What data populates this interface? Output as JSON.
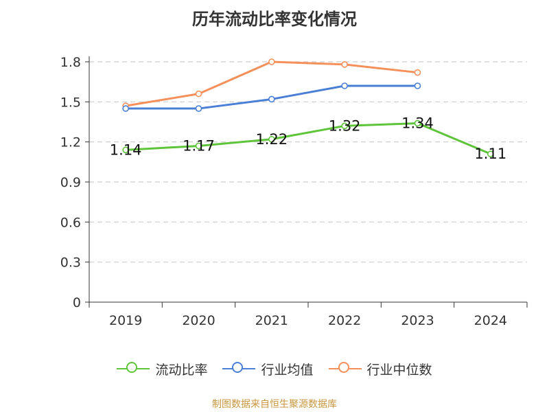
{
  "title": "历年流动比率变化情况",
  "source": "制图数据来自恒生聚源数据库",
  "colors": {
    "流动比率": "#5ec43a",
    "行业均值": "#4a7fd6",
    "行业中位数": "#f5905a",
    "axis": "#333333",
    "grid": "#cccccc"
  },
  "chart_data": {
    "type": "line",
    "title": "历年流动比率变化情况",
    "categories": [
      "2019",
      "2020",
      "2021",
      "2022",
      "2023",
      "2024"
    ],
    "ylim": [
      0,
      1.8
    ],
    "yticks": [
      "0",
      "0.3",
      "0.6",
      "0.9",
      "1.2",
      "1.5",
      "1.8"
    ],
    "grid": true,
    "legend_position": "bottom",
    "series": [
      {
        "name": "流动比率",
        "values": [
          1.14,
          1.17,
          1.22,
          1.32,
          1.34,
          1.11
        ],
        "labels": [
          "1.14",
          "1.17",
          "1.22",
          "1.32",
          "1.34",
          "1.11"
        ]
      },
      {
        "name": "行业均值",
        "values": [
          1.45,
          1.45,
          1.52,
          1.62,
          1.62,
          null
        ]
      },
      {
        "name": "行业中位数",
        "values": [
          1.47,
          1.56,
          1.8,
          1.78,
          1.72,
          null
        ]
      }
    ]
  }
}
